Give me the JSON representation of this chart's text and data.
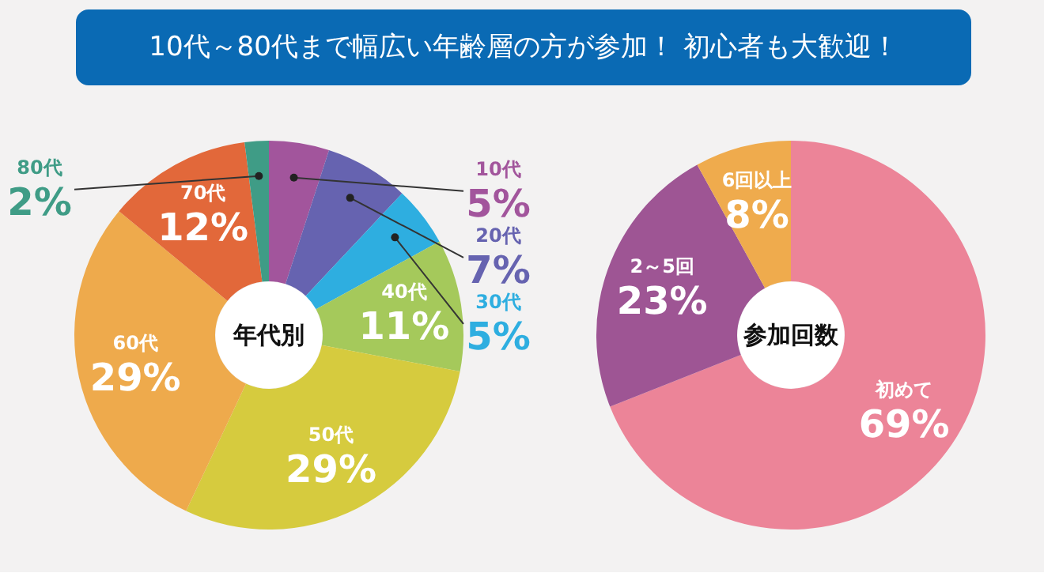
{
  "chart_data": [
    {
      "type": "donut",
      "title": "年代別",
      "annotations": [
        "10代～80代まで幅広い年齢層の方が参加！ 初心者も大歓迎！"
      ],
      "categories": [
        "10代",
        "20代",
        "30代",
        "40代",
        "50代",
        "60代",
        "70代",
        "80代"
      ],
      "values": [
        5,
        7,
        5,
        11,
        29,
        29,
        12,
        2
      ],
      "colors": [
        "#a2559c",
        "#6663b0",
        "#2eaee0",
        "#a5c95b",
        "#d6cb3e",
        "#eeaa4c",
        "#e2683a",
        "#3f9c86"
      ],
      "value_labels": [
        "5%",
        "7%",
        "5%",
        "11%",
        "29%",
        "29%",
        "12%",
        "2%"
      ]
    },
    {
      "type": "donut",
      "title": "参加回数",
      "categories": [
        "初めて",
        "2～5回",
        "6回以上"
      ],
      "values": [
        69,
        23,
        8
      ],
      "colors": [
        "#ec8498",
        "#9e5594",
        "#efab4d"
      ],
      "value_labels": [
        "69%",
        "23%",
        "8%"
      ]
    }
  ]
}
